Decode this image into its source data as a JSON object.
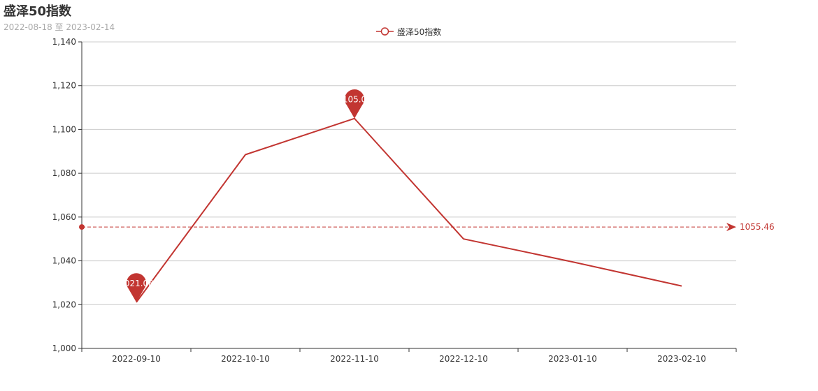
{
  "chart_data": {
    "type": "line",
    "title": "盛泽50指数",
    "subtitle": "2022-08-18 至 2023-02-14",
    "legend": {
      "position": "top-center",
      "entries": [
        "盛泽50指数"
      ]
    },
    "xlabel": "",
    "ylabel": "",
    "x_ticks": [
      "2022-09-10",
      "2022-10-10",
      "2022-11-10",
      "2022-12-10",
      "2023-01-10",
      "2023-02-10"
    ],
    "ylim": [
      1000,
      1140
    ],
    "y_ticks": [
      1000,
      1020,
      1040,
      1060,
      1080,
      1100,
      1120,
      1140
    ],
    "y_tick_labels": [
      "1,000",
      "1,020",
      "1,040",
      "1,060",
      "1,080",
      "1,100",
      "1,120",
      "1,140"
    ],
    "grid": true,
    "series": [
      {
        "name": "盛泽50指数",
        "color": "#c23531",
        "x": [
          "2022-09-10",
          "2022-10-10",
          "2022-11-10",
          "2022-12-10",
          "2023-01-10",
          "2023-02-10"
        ],
        "values": [
          1021.08,
          1088.5,
          1105.03,
          1050.0,
          1039.5,
          1028.5
        ]
      }
    ],
    "mark_points": [
      {
        "label": "1021.08",
        "x": "2022-09-10",
        "value": 1021.08
      },
      {
        "label": "1105.03",
        "x": "2022-11-10",
        "value": 1105.03
      }
    ],
    "mark_line": {
      "label": "1055.46",
      "value": 1055.46
    }
  }
}
